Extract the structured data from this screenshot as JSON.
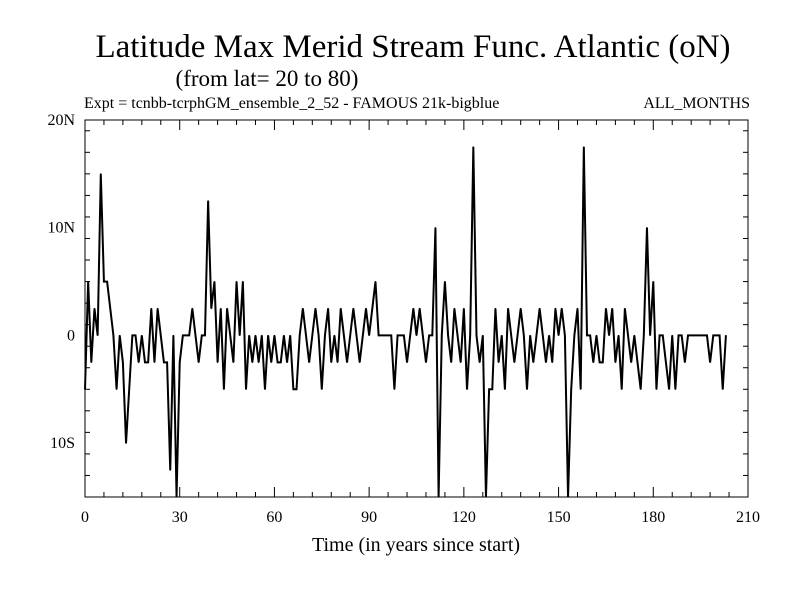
{
  "chart_data": {
    "type": "line",
    "title": "Latitude Max Merid Stream Func. Atlantic (oN)",
    "subtitle": "(from lat= 20 to 80)",
    "experiment_label": "Expt = tcnbb-tcrphGM_ensemble_2_52 - FAMOUS 21k-bigblue",
    "months_label": "ALL_MONTHS",
    "xlabel": "Time (in years since start)",
    "ylabel": "",
    "xlim": [
      0,
      210
    ],
    "ylim": [
      -15,
      20
    ],
    "x_ticks": [
      0,
      30,
      60,
      90,
      120,
      150,
      180,
      210
    ],
    "x_tick_labels": [
      "0",
      "30",
      "60",
      "90",
      "120",
      "150",
      "180",
      "210"
    ],
    "y_ticks": [
      20,
      10,
      0,
      -10
    ],
    "y_tick_labels": [
      "20N",
      "10N",
      "0",
      "10S"
    ],
    "grid": false,
    "line_color": "#000000",
    "series": [
      {
        "name": "",
        "values": [
          -5,
          5,
          -2.5,
          2.5,
          0,
          15,
          5,
          5,
          2.5,
          0,
          -5,
          0,
          -2.5,
          -10,
          -5,
          0,
          0,
          -2.5,
          0,
          -2.5,
          -2.5,
          2.5,
          -2.5,
          2.5,
          0,
          -2.5,
          -2.5,
          -12.5,
          0,
          -15,
          -2.5,
          0,
          0,
          0,
          2.5,
          0,
          -2.5,
          0,
          0,
          12.5,
          2.5,
          5,
          -2.5,
          2.5,
          -5,
          2.5,
          0,
          -2.5,
          5,
          0,
          5,
          -5,
          0,
          -2.5,
          0,
          -2.5,
          0,
          -5,
          0,
          -2.5,
          0,
          -2.5,
          -2.5,
          0,
          -2.5,
          0,
          -5,
          -5,
          0,
          2.5,
          0,
          -2.5,
          0,
          2.5,
          0,
          -5,
          0,
          2.5,
          -2.5,
          0,
          -2.5,
          2.5,
          0,
          -2.5,
          0,
          2.5,
          0,
          -2.5,
          0,
          2.5,
          0,
          2.5,
          5,
          0,
          0,
          0,
          0,
          0,
          -5,
          0,
          0,
          0,
          -2.5,
          0,
          2.5,
          0,
          2.5,
          0,
          -2.5,
          0,
          0,
          10,
          -15,
          0,
          5,
          0,
          -2.5,
          2.5,
          0,
          -2.5,
          2.5,
          -5,
          0,
          17.5,
          0,
          -2.5,
          0,
          -15,
          -5,
          -5,
          2.5,
          -2.5,
          0,
          -5,
          2.5,
          0,
          -2.5,
          0,
          2.5,
          0,
          -5,
          0,
          -2.5,
          0,
          2.5,
          0,
          -2.5,
          0,
          -2.5,
          2.5,
          0,
          2.5,
          0,
          -15,
          -5,
          0,
          2.5,
          -5,
          17.5,
          0,
          0,
          -2.5,
          0,
          -2.5,
          -2.5,
          2.5,
          0,
          2.5,
          -2.5,
          0,
          -5,
          2.5,
          0,
          -2.5,
          0,
          -2.5,
          -5,
          0,
          10,
          0,
          5,
          -5,
          0,
          0,
          -2.5,
          -5,
          0,
          -5,
          0,
          0,
          -2.5,
          0,
          0,
          0,
          0,
          0,
          0,
          0,
          -2.5,
          0,
          0,
          0,
          -5,
          0
        ]
      }
    ]
  }
}
